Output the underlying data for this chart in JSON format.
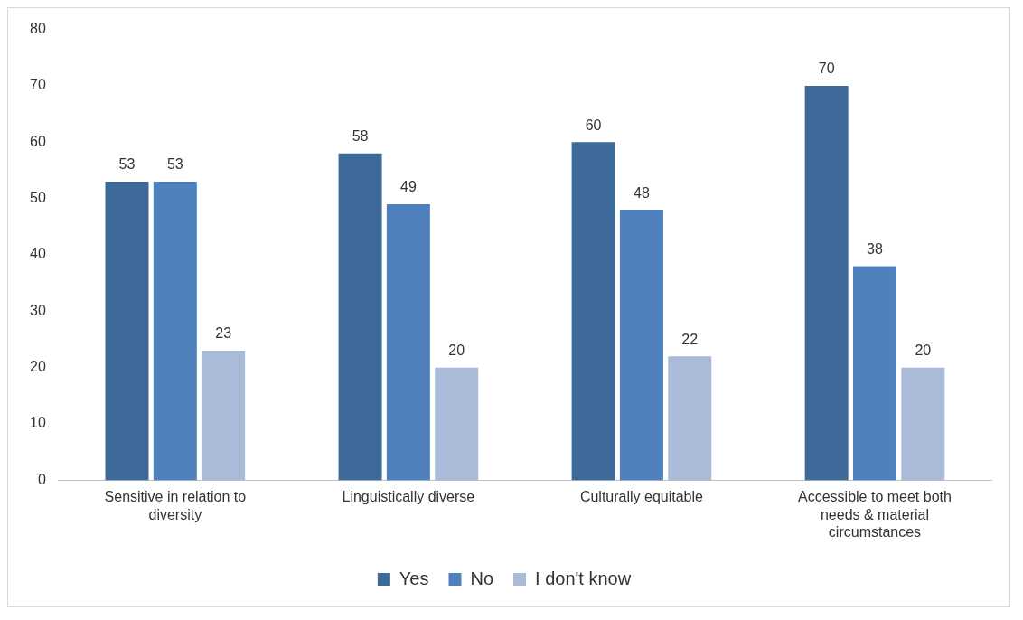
{
  "chart_data": {
    "type": "bar",
    "categories": [
      "Sensitive in relation to diversity",
      "Linguistically diverse",
      "Culturally equitable",
      "Accessible to meet both needs & material circumstances"
    ],
    "series": [
      {
        "name": "Yes",
        "color": "#3e6a9a",
        "values": [
          53,
          58,
          60,
          70
        ]
      },
      {
        "name": "No",
        "color": "#4f81bd",
        "values": [
          53,
          49,
          48,
          38
        ]
      },
      {
        "name": "I don't know",
        "color": "#a9bbd9",
        "values": [
          23,
          20,
          22,
          20
        ]
      }
    ],
    "ylim": [
      0,
      80
    ],
    "yticks": [
      0,
      10,
      20,
      30,
      40,
      50,
      60,
      70,
      80
    ],
    "grid": false,
    "legend": "bottom",
    "data_labels": true
  }
}
